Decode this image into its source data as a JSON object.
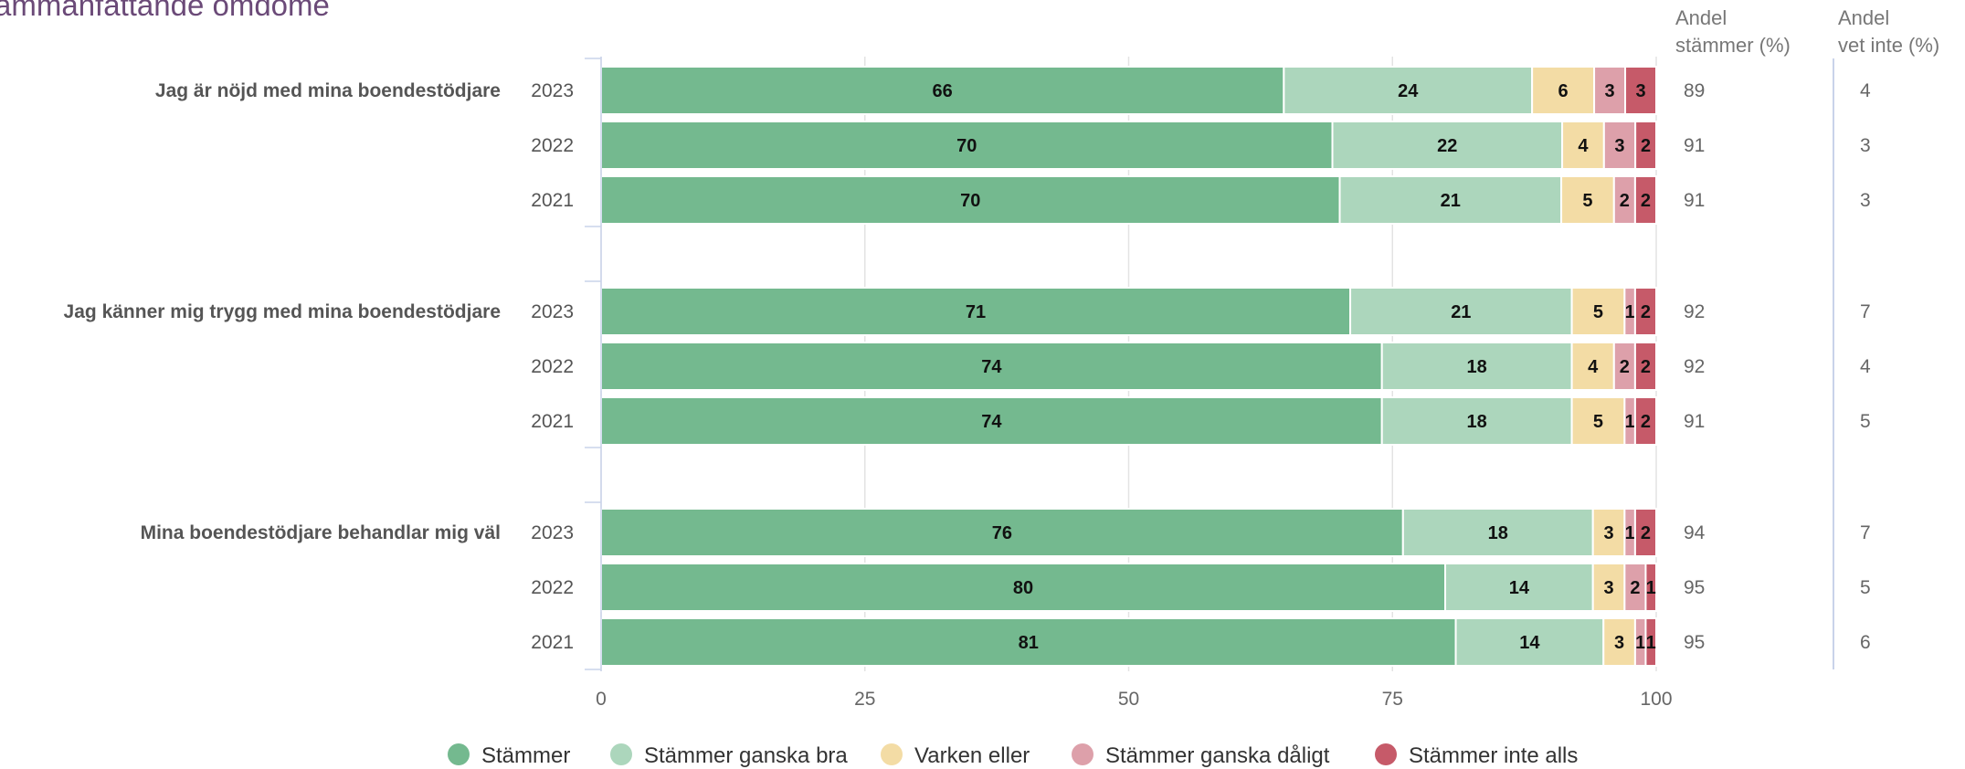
{
  "page": {
    "title": "Sammanfattande omdöme",
    "share_header_1": [
      "Andel",
      "stämmer (%)"
    ],
    "share_header_2": [
      "Andel",
      "vet inte (%)"
    ]
  },
  "chart_data": {
    "type": "bar",
    "orientation": "horizontal",
    "stacked": true,
    "xlim": [
      0,
      100
    ],
    "x_ticks": [
      "0",
      "25",
      "50",
      "75",
      "100"
    ],
    "grid": true,
    "legend_position": "bottom",
    "legend": [
      {
        "name": "Stämmer",
        "color": "#74b98f"
      },
      {
        "name": "Stämmer ganska bra",
        "color": "#acd6bc"
      },
      {
        "name": "Varken eller",
        "color": "#f3dca5"
      },
      {
        "name": "Stämmer ganska dåligt",
        "color": "#dda0aa"
      },
      {
        "name": "Stämmer inte alls",
        "color": "#c65a69"
      }
    ],
    "groups": [
      {
        "label": "Jag är nöjd med mina boendestödjare",
        "rows": [
          {
            "year": "2023",
            "values": [
              66,
              24,
              6,
              3,
              3
            ],
            "andel_stammer": "89",
            "andel_vet_inte": "4"
          },
          {
            "year": "2022",
            "values": [
              70,
              22,
              4,
              3,
              2
            ],
            "andel_stammer": "91",
            "andel_vet_inte": "3"
          },
          {
            "year": "2021",
            "values": [
              70,
              21,
              5,
              2,
              2
            ],
            "andel_stammer": "91",
            "andel_vet_inte": "3"
          }
        ]
      },
      {
        "label": "Jag känner mig trygg med mina boendestödjare",
        "rows": [
          {
            "year": "2023",
            "values": [
              71,
              21,
              5,
              1,
              2
            ],
            "andel_stammer": "92",
            "andel_vet_inte": "7"
          },
          {
            "year": "2022",
            "values": [
              74,
              18,
              4,
              2,
              2
            ],
            "andel_stammer": "92",
            "andel_vet_inte": "4"
          },
          {
            "year": "2021",
            "values": [
              74,
              18,
              5,
              1,
              2
            ],
            "andel_stammer": "91",
            "andel_vet_inte": "5"
          }
        ]
      },
      {
        "label": "Mina boendestödjare behandlar mig väl",
        "rows": [
          {
            "year": "2023",
            "values": [
              76,
              18,
              3,
              1,
              2
            ],
            "andel_stammer": "94",
            "andel_vet_inte": "7"
          },
          {
            "year": "2022",
            "values": [
              80,
              14,
              3,
              2,
              1
            ],
            "andel_stammer": "95",
            "andel_vet_inte": "5"
          },
          {
            "year": "2021",
            "values": [
              81,
              14,
              3,
              1,
              1
            ],
            "andel_stammer": "95",
            "andel_vet_inte": "6"
          }
        ]
      }
    ]
  }
}
